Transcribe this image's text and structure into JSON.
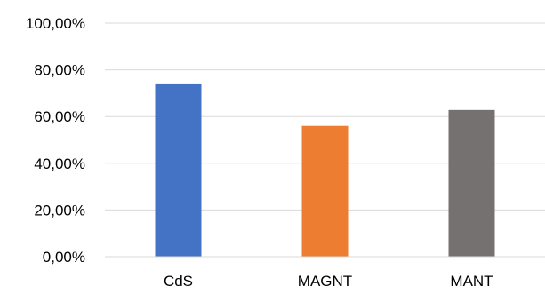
{
  "chart_data": {
    "type": "bar",
    "categories": [
      "CdS",
      "MAGNT",
      "MANT"
    ],
    "values": [
      73.8,
      56.0,
      62.8
    ],
    "colors": [
      "#4472c4",
      "#ed7d31",
      "#767171"
    ],
    "ylim": [
      0,
      100
    ],
    "yticks": [
      0,
      20,
      40,
      60,
      80,
      100
    ],
    "ytick_labels": [
      "0,00%",
      "20,00%",
      "40,00%",
      "60,00%",
      "80,00%",
      "100,00%"
    ],
    "title": "",
    "xlabel": "",
    "ylabel": "",
    "grid": true,
    "legend": "none"
  }
}
